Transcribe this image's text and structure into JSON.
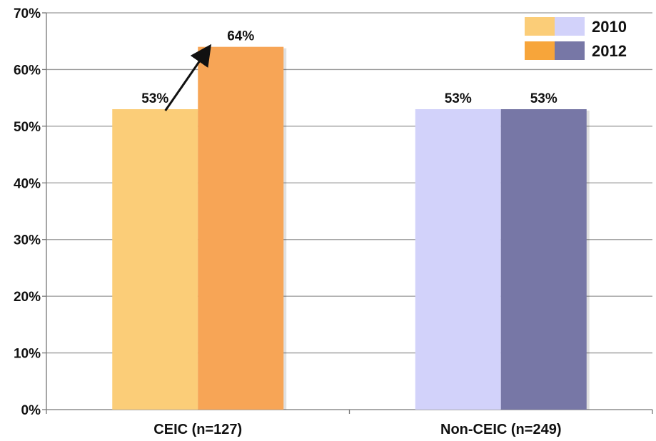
{
  "chart_data": {
    "type": "bar",
    "categories": [
      "CEIC (n=127)",
      "Non-CEIC (n=249)"
    ],
    "series": [
      {
        "name": "2010",
        "values": [
          53,
          53
        ]
      },
      {
        "name": "2012",
        "values": [
          64,
          53
        ]
      }
    ],
    "data_labels": {
      "2010": [
        "53%",
        "53%"
      ],
      "2012": [
        "64%",
        "53%"
      ]
    },
    "y_ticks": [
      0,
      10,
      20,
      30,
      40,
      50,
      60,
      70
    ],
    "y_tick_labels": [
      "0%",
      "10%",
      "20%",
      "30%",
      "40%",
      "50%",
      "60%",
      "70%"
    ],
    "ylim": [
      0,
      70
    ],
    "grid": true,
    "legend_position": "top-right",
    "bar_colors": {
      "CEIC (n=127)": {
        "2010": "#fbcd78",
        "2012": "#f7a556"
      },
      "Non-CEIC (n=249)": {
        "2010": "#d2d2fa",
        "2012": "#7777a6"
      }
    },
    "legend": [
      {
        "label": "2010",
        "swatch_colors": [
          "#fbcd78",
          "#d2d2fa"
        ]
      },
      {
        "label": "2012",
        "swatch_colors": [
          "#f7a53a",
          "#7777a6"
        ]
      }
    ],
    "annotation": {
      "type": "arrow",
      "from": "CEIC (n=127) 2010",
      "to": "CEIC (n=127) 2012"
    }
  }
}
